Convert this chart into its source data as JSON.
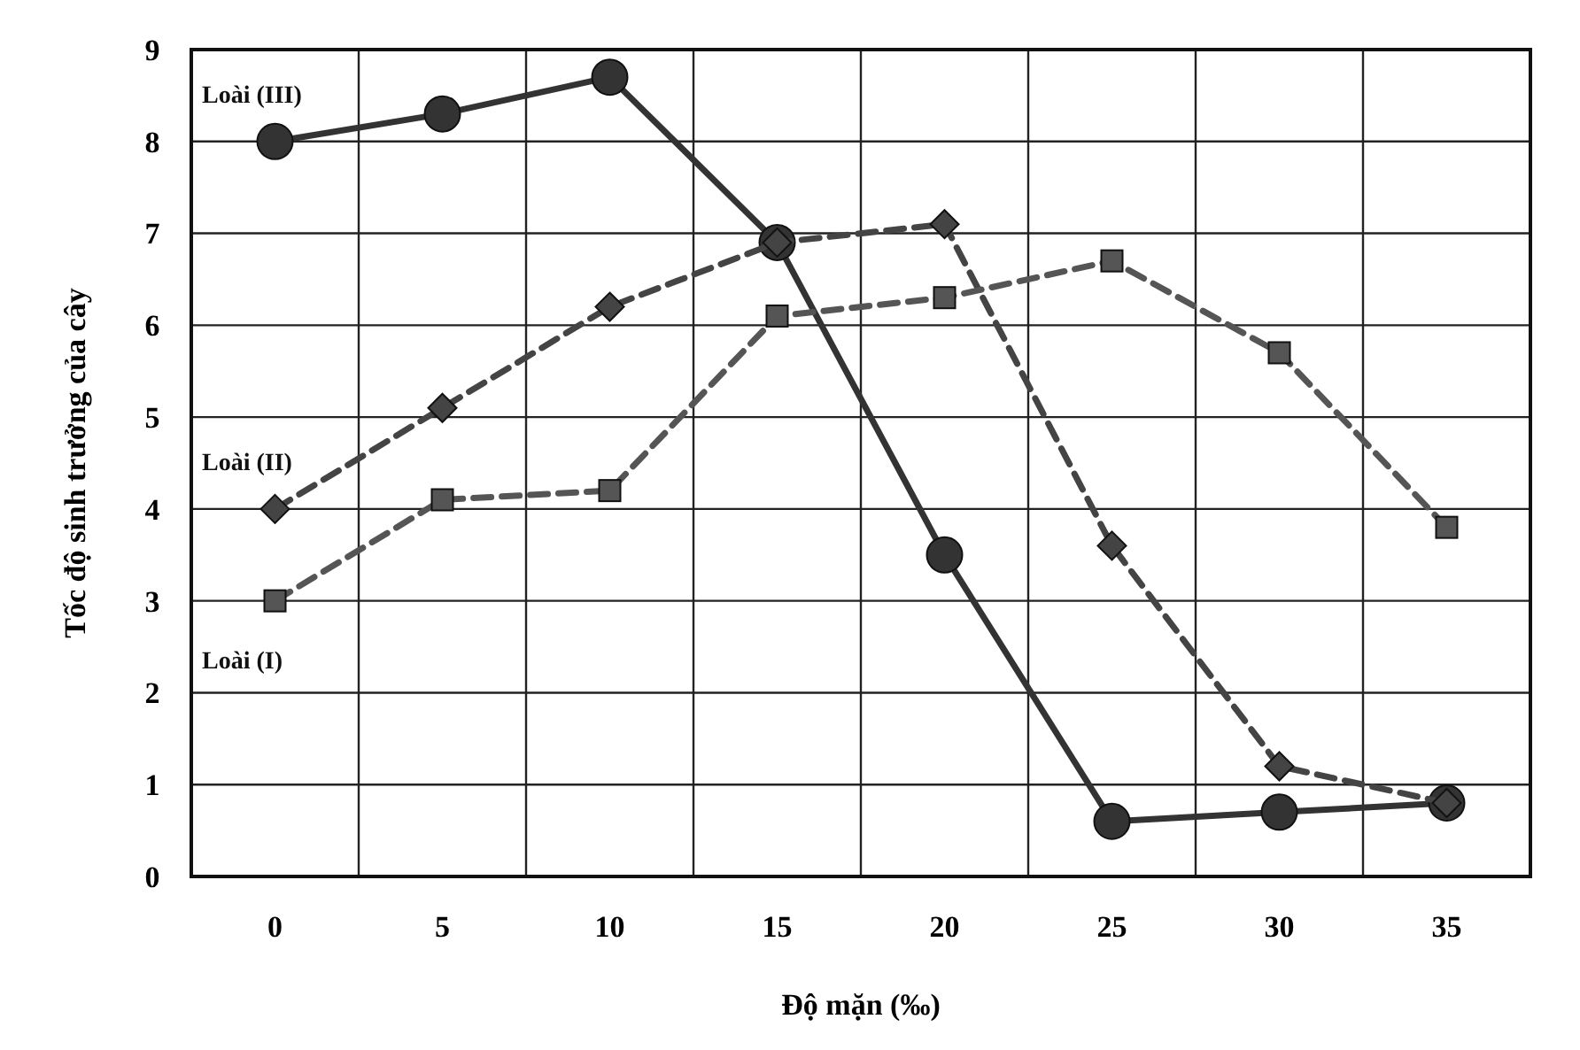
{
  "chart_data": {
    "type": "line",
    "xlabel": "Độ mặn (‰)",
    "ylabel": "Tốc độ sinh trưởng của cây",
    "categories": [
      "0",
      "5",
      "10",
      "15",
      "20",
      "25",
      "30",
      "35"
    ],
    "ylim": [
      0,
      9
    ],
    "yticks": [
      0,
      1,
      2,
      3,
      4,
      5,
      6,
      7,
      8,
      9
    ],
    "grid": true,
    "series": [
      {
        "name": "Loài (III)",
        "color": "#333333",
        "marker": "circle",
        "line_style": "solid",
        "values": [
          8,
          8.3,
          8.7,
          6.9,
          3.5,
          0.6,
          0.7,
          0.8
        ]
      },
      {
        "name": "Loài (II)",
        "color": "#444444",
        "marker": "diamond",
        "line_style": "dashed",
        "values": [
          4,
          5.1,
          6.2,
          6.9,
          7.1,
          3.6,
          1.2,
          0.8
        ]
      },
      {
        "name": "Loài (I)",
        "color": "#555555",
        "marker": "square",
        "line_style": "dashed",
        "values": [
          3,
          4.1,
          4.2,
          6.1,
          6.3,
          6.7,
          5.7,
          3.8
        ]
      }
    ]
  }
}
